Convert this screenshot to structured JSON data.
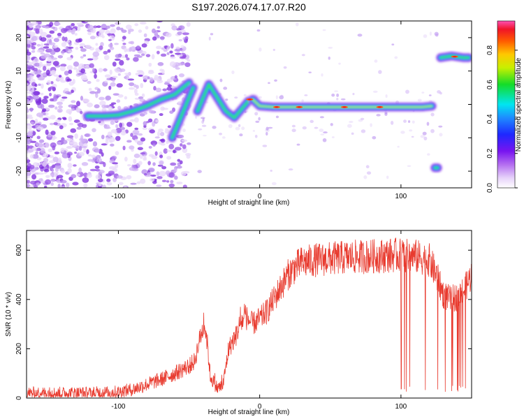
{
  "title": "S197.2026.074.17.07.R20",
  "colors": {
    "snr_line": "#e83a2e",
    "axis": "#000000",
    "colormap": [
      "#ffffff",
      "#c8a8f0",
      "#9a32e6",
      "#3c14ff",
      "#1478ff",
      "#00e6f0",
      "#14e628",
      "#f0f000",
      "#ff8c00",
      "#f01414",
      "#ff64c8"
    ]
  },
  "chart_data": [
    {
      "type": "heatmap",
      "name": "spectrogram",
      "xlabel": "Height of straight line (km)",
      "ylabel": "Frequency (Hz)",
      "xlim": [
        -165,
        150
      ],
      "ylim": [
        -25,
        25
      ],
      "xticks": [
        -100,
        0,
        100
      ],
      "xtick_labels": [
        "-100",
        "0",
        "100"
      ],
      "yticks": [
        -20,
        -10,
        0,
        10,
        20
      ],
      "ytick_labels": [
        "-20",
        "-10",
        "0",
        "10",
        "20"
      ],
      "colorbar": {
        "label": "Normalized spectral amplitude",
        "range": [
          0,
          0.97
        ],
        "ticks": [
          0.0,
          0.2,
          0.4,
          0.6,
          0.8
        ],
        "tick_labels": [
          "0.0",
          "0.2",
          "0.4",
          "0.6",
          "0.8"
        ]
      },
      "traces": [
        {
          "name": "main-trace",
          "points": [
            [
              -122,
              -3.5
            ],
            [
              -110,
              -3.5
            ],
            [
              -100,
              -3.2
            ],
            [
              -90,
              -2
            ],
            [
              -80,
              -0.5
            ],
            [
              -70,
              1.5
            ],
            [
              -60,
              3
            ],
            [
              -50,
              6.5
            ]
          ],
          "amplitude": 0.55
        },
        {
          "name": "diagonal-trace",
          "points": [
            [
              -62,
              -10
            ],
            [
              -57,
              -5
            ],
            [
              -52,
              0
            ],
            [
              -47,
              5
            ]
          ],
          "amplitude": 0.5
        },
        {
          "name": "v-trace",
          "points": [
            [
              -44,
              -2
            ],
            [
              -40,
              2
            ],
            [
              -36,
              6
            ],
            [
              -30,
              2
            ],
            [
              -24,
              -2
            ],
            [
              -18,
              -4
            ],
            [
              -12,
              -1
            ],
            [
              -8,
              1
            ],
            [
              -4,
              1.5
            ]
          ],
          "amplitude": 0.55
        },
        {
          "name": "zero-trace",
          "points": [
            [
              -5,
              1.5
            ],
            [
              0,
              -0.5
            ],
            [
              10,
              -0.8
            ],
            [
              40,
              -0.8
            ],
            [
              80,
              -0.8
            ],
            [
              100,
              -0.8
            ],
            [
              115,
              -0.8
            ],
            [
              122,
              -0.5
            ]
          ],
          "amplitude": 0.8
        },
        {
          "name": "spot-low",
          "points": [
            [
              124,
              -19
            ],
            [
              126,
              -19
            ]
          ],
          "amplitude": 0.55
        },
        {
          "name": "spot-high",
          "points": [
            [
              128,
              14
            ],
            [
              136,
              14.5
            ],
            [
              144,
              14
            ],
            [
              148,
              14
            ]
          ],
          "amplitude": 0.7
        }
      ]
    },
    {
      "type": "line",
      "name": "snr",
      "xlabel": "Height of straight line (km)",
      "ylabel": "SNR (10 * v/v)",
      "xlim": [
        -165,
        150
      ],
      "ylim": [
        0,
        680
      ],
      "xticks": [
        -100,
        0,
        100
      ],
      "xtick_labels": [
        "-100",
        "0",
        "100"
      ],
      "yticks": [
        0,
        200,
        400,
        600
      ],
      "ytick_labels": [
        "0",
        "200",
        "400",
        "600"
      ],
      "trend": [
        [
          -165,
          20
        ],
        [
          -120,
          20
        ],
        [
          -100,
          25
        ],
        [
          -90,
          35
        ],
        [
          -80,
          55
        ],
        [
          -70,
          75
        ],
        [
          -60,
          100
        ],
        [
          -50,
          130
        ],
        [
          -46,
          150
        ],
        [
          -42,
          250
        ],
        [
          -39,
          300
        ],
        [
          -37,
          220
        ],
        [
          -35,
          90
        ],
        [
          -30,
          40
        ],
        [
          -26,
          50
        ],
        [
          -22,
          200
        ],
        [
          -17,
          250
        ],
        [
          -14,
          300
        ],
        [
          -10,
          330
        ],
        [
          -5,
          300
        ],
        [
          0,
          320
        ],
        [
          5,
          350
        ],
        [
          10,
          400
        ],
        [
          15,
          450
        ],
        [
          20,
          500
        ],
        [
          25,
          530
        ],
        [
          30,
          550
        ],
        [
          40,
          560
        ],
        [
          60,
          570
        ],
        [
          80,
          575
        ],
        [
          95,
          580
        ],
        [
          110,
          575
        ],
        [
          120,
          560
        ],
        [
          125,
          500
        ],
        [
          130,
          420
        ],
        [
          135,
          400
        ],
        [
          140,
          410
        ],
        [
          145,
          440
        ],
        [
          150,
          500
        ]
      ],
      "dropout_range": [
        100,
        150
      ],
      "dropout_value": 25,
      "noise": 25
    }
  ]
}
